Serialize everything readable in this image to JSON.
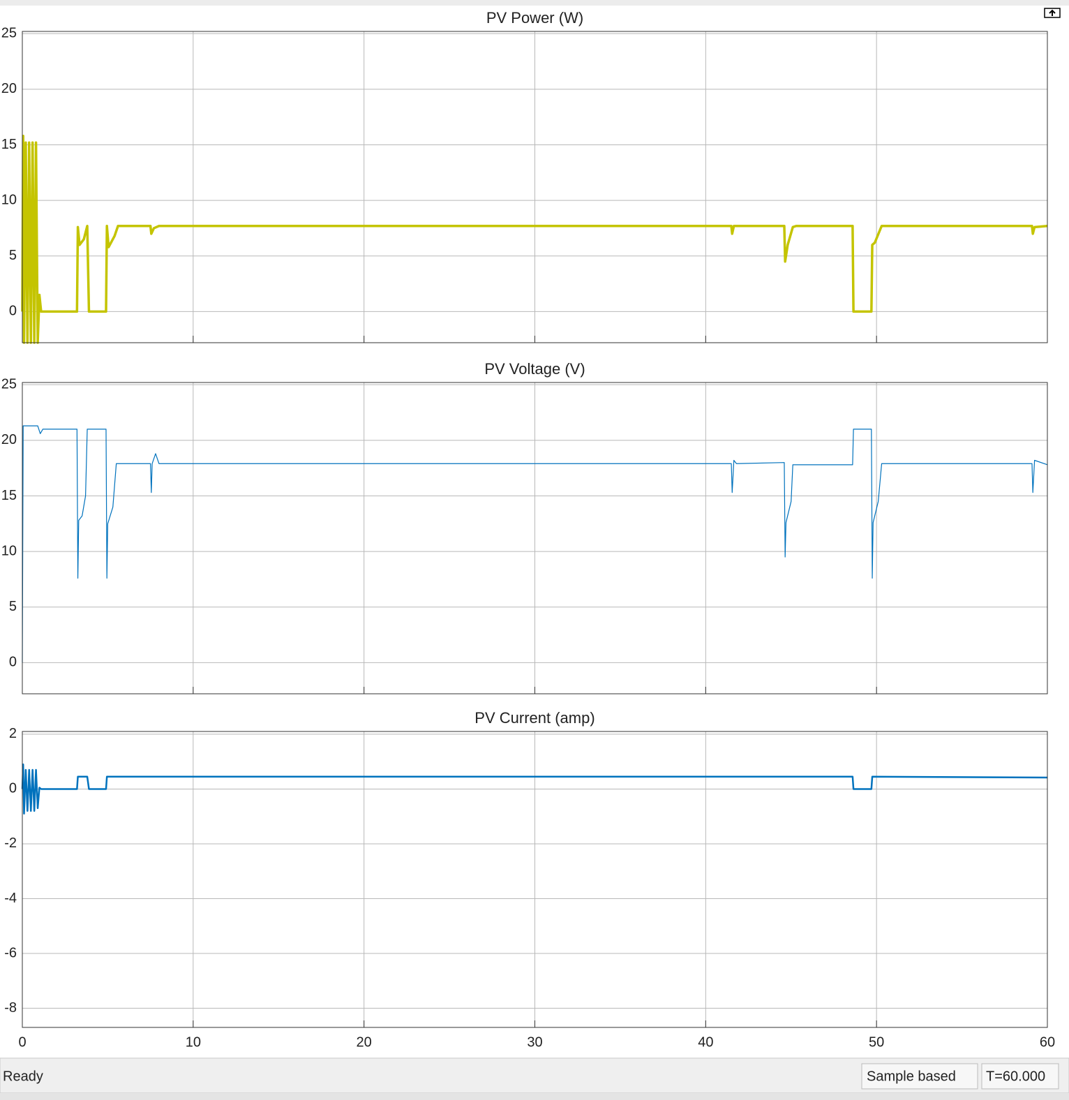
{
  "charts": {
    "chart_data": [
      {
        "type": "line",
        "title": "PV Power (W)",
        "xlim": [
          0,
          60
        ],
        "ylim": [
          -2.8,
          25.2
        ],
        "xticks": [
          0,
          10,
          20,
          30,
          40,
          50,
          60
        ],
        "yticks": [
          0,
          5,
          10,
          15,
          20,
          25
        ],
        "grid": true,
        "series": [
          {
            "color": "#c4c400",
            "x": [
              0,
              0.05,
              0.1,
              0.2,
              0.3,
              0.4,
              0.5,
              0.6,
              0.7,
              0.8,
              0.9,
              1.0,
              1.1,
              3.2,
              3.25,
              3.35,
              3.6,
              3.8,
              3.9,
              4.9,
              4.95,
              5.05,
              5.4,
              5.6,
              7.5,
              7.55,
              7.7,
              8,
              41.5,
              41.55,
              41.65,
              44.6,
              44.65,
              44.8,
              45.1,
              45.3,
              48.6,
              48.65,
              49.7,
              49.75,
              49.9,
              50.3,
              59.1,
              59.15,
              59.25,
              60
            ],
            "values": [
              0,
              15.8,
              -2.8,
              15.2,
              -2.8,
              15.2,
              -2.8,
              15.2,
              -2.8,
              15.2,
              -2.8,
              1.5,
              0,
              0,
              7.6,
              6,
              6.5,
              7.7,
              0,
              0,
              7.7,
              5.8,
              6.8,
              7.7,
              7.7,
              7.0,
              7.5,
              7.7,
              7.7,
              7.0,
              7.7,
              7.7,
              4.5,
              6,
              7.6,
              7.7,
              7.7,
              0,
              0,
              6,
              6.2,
              7.7,
              7.7,
              7.0,
              7.6,
              7.7
            ]
          }
        ]
      },
      {
        "type": "line",
        "title": "PV Voltage (V)",
        "xlim": [
          0,
          60
        ],
        "ylim": [
          -2.8,
          25.2
        ],
        "xticks": [
          0,
          10,
          20,
          30,
          40,
          50,
          60
        ],
        "yticks": [
          0,
          5,
          10,
          15,
          20,
          25
        ],
        "grid": true,
        "series": [
          {
            "color": "#0072bd",
            "x": [
              0,
              0.05,
              0.9,
              1.05,
              1.2,
              3.2,
              3.25,
              3.3,
              3.5,
              3.7,
              3.8,
              4.9,
              4.95,
              5.0,
              5.3,
              5.5,
              7.5,
              7.55,
              7.6,
              7.8,
              8,
              41.5,
              41.55,
              41.65,
              41.8,
              44.6,
              44.65,
              44.7,
              45.0,
              45.1,
              48.6,
              48.65,
              49.7,
              49.75,
              49.8,
              50.1,
              50.3,
              59.1,
              59.15,
              59.25,
              60
            ],
            "values": [
              0,
              21.3,
              21.3,
              20.6,
              21.0,
              21.0,
              7.6,
              12.8,
              13.2,
              15,
              21,
              21,
              7.6,
              12.5,
              14,
              17.9,
              17.9,
              15.3,
              17.9,
              18.8,
              17.9,
              17.9,
              15.3,
              18.2,
              17.9,
              18.0,
              9.5,
              12.6,
              14.5,
              17.8,
              17.8,
              21.0,
              21,
              7.6,
              12.6,
              14.5,
              17.9,
              17.9,
              15.3,
              18.2,
              17.8
            ]
          }
        ]
      },
      {
        "type": "line",
        "title": "PV Current (amp)",
        "xlim": [
          0,
          60
        ],
        "ylim": [
          -8.7,
          2.1
        ],
        "xticks": [
          0,
          10,
          20,
          30,
          40,
          50,
          60
        ],
        "yticks": [
          -8,
          -6,
          -4,
          -2,
          0,
          2
        ],
        "grid": true,
        "xtick_labels": true,
        "series": [
          {
            "color": "#0072bd",
            "x": [
              0,
              0.05,
              0.1,
              0.2,
              0.3,
              0.4,
              0.5,
              0.6,
              0.7,
              0.8,
              0.9,
              1.0,
              1.1,
              3.2,
              3.25,
              3.8,
              3.9,
              4.9,
              4.95,
              48.6,
              48.65,
              49.7,
              49.75,
              60
            ],
            "values": [
              0,
              0.9,
              -0.9,
              0.7,
              -0.8,
              0.7,
              -0.8,
              0.7,
              -0.8,
              0.7,
              -0.7,
              0.05,
              0,
              0,
              0.45,
              0.45,
              0,
              0,
              0.45,
              0.45,
              0,
              0,
              0.45,
              0.42
            ]
          }
        ]
      }
    ]
  },
  "status_bar": {
    "status": "Ready",
    "mode": "Sample based",
    "time": "T=60.000"
  }
}
